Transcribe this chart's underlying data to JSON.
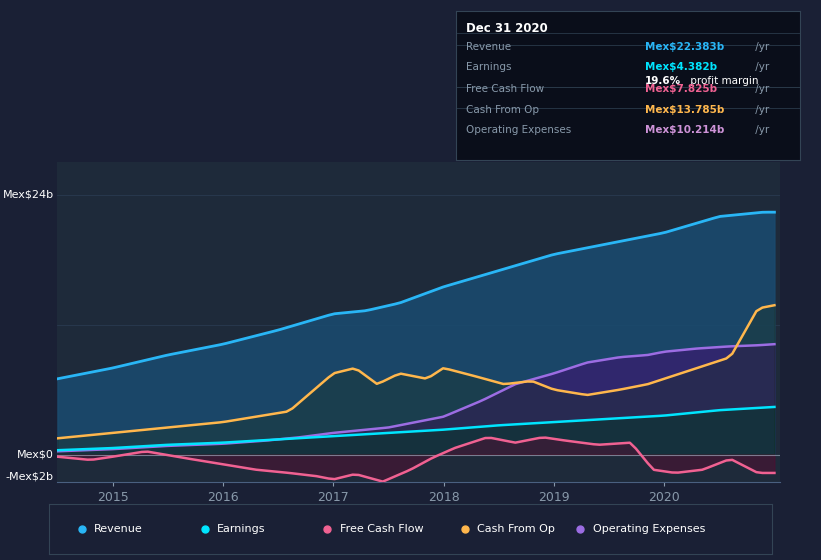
{
  "bg_color": "#1a2035",
  "plot_bg_color": "#1e2a3a",
  "colors": {
    "revenue": "#29b6f6",
    "earnings": "#00e5ff",
    "free_cash": "#f06292",
    "cash_op": "#ffb74d",
    "op_exp": "#9c6de3"
  },
  "legend": [
    {
      "label": "Revenue",
      "color": "#29b6f6"
    },
    {
      "label": "Earnings",
      "color": "#00e5ff"
    },
    {
      "label": "Free Cash Flow",
      "color": "#f06292"
    },
    {
      "label": "Cash From Op",
      "color": "#ffb74d"
    },
    {
      "label": "Operating Expenses",
      "color": "#9c6de3"
    }
  ],
  "info_title": "Dec 31 2020",
  "info_rows": [
    {
      "label": "Revenue",
      "value": "Mex$22.383b",
      "unit": " /yr",
      "color": "#29b6f6",
      "sub": null
    },
    {
      "label": "Earnings",
      "value": "Mex$4.382b",
      "unit": " /yr",
      "color": "#00e5ff",
      "sub": "19.6% profit margin"
    },
    {
      "label": "Free Cash Flow",
      "value": "Mex$7.825b",
      "unit": " /yr",
      "color": "#f06292",
      "sub": null
    },
    {
      "label": "Cash From Op",
      "value": "Mex$13.785b",
      "unit": " /yr",
      "color": "#ffb74d",
      "sub": null
    },
    {
      "label": "Operating Expenses",
      "value": "Mex$10.214b",
      "unit": " /yr",
      "color": "#ce93d8",
      "sub": null
    }
  ]
}
